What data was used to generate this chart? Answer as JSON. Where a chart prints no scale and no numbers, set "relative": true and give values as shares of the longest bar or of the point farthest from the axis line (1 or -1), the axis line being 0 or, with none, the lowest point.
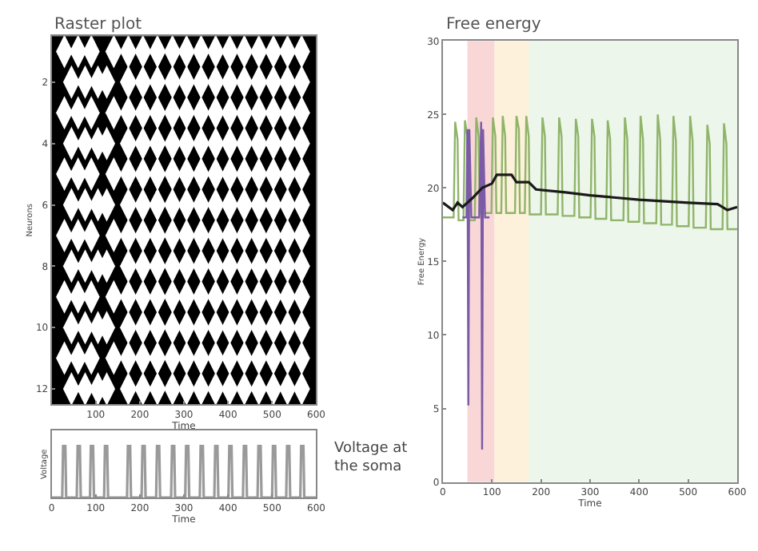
{
  "chart_data": [
    {
      "type": "scatter",
      "title": "Raster plot",
      "xlabel": "Time",
      "ylabel": "Neurons",
      "xlim": [
        0,
        600
      ],
      "xticks": [
        100,
        200,
        300,
        400,
        500,
        600
      ],
      "ylim": [
        12.5,
        0.5
      ],
      "yticks": [
        2,
        4,
        6,
        8,
        10,
        12
      ],
      "grid": false,
      "marker": "diamond",
      "series": [
        {
          "color": "#ffffff",
          "x": [
            29,
            60,
            90,
            141,
            174,
            207,
            240,
            274,
            306,
            339,
            372,
            404,
            437,
            470,
            503,
            535,
            567
          ],
          "values": [
            1,
            1,
            1,
            1,
            1,
            1,
            1,
            1,
            1,
            1,
            1,
            1,
            1,
            1,
            1,
            1,
            1
          ]
        },
        {
          "color": "#ffffff",
          "x": [
            45,
            76,
            105,
            125,
            174,
            207,
            240,
            274,
            306,
            339,
            372,
            404,
            437,
            470,
            503,
            535,
            567
          ],
          "values": [
            2,
            2,
            2,
            2,
            2,
            2,
            2,
            2,
            2,
            2,
            2,
            2,
            2,
            2,
            2,
            2,
            2
          ]
        },
        {
          "color": "#ffffff",
          "x": [
            29,
            60,
            90,
            141,
            174,
            207,
            240,
            274,
            306,
            339,
            372,
            404,
            437,
            470,
            503,
            535,
            567
          ],
          "values": [
            3,
            3,
            3,
            3,
            3,
            3,
            3,
            3,
            3,
            3,
            3,
            3,
            3,
            3,
            3,
            3,
            3
          ]
        },
        {
          "color": "#ffffff",
          "x": [
            45,
            76,
            105,
            125,
            174,
            207,
            240,
            274,
            306,
            339,
            372,
            404,
            437,
            470,
            503,
            535,
            567
          ],
          "values": [
            4,
            4,
            4,
            4,
            4,
            4,
            4,
            4,
            4,
            4,
            4,
            4,
            4,
            4,
            4,
            4,
            4
          ]
        },
        {
          "color": "#ffffff",
          "x": [
            29,
            60,
            90,
            141,
            174,
            207,
            240,
            274,
            306,
            339,
            372,
            404,
            437,
            470,
            503,
            535,
            567
          ],
          "values": [
            5,
            5,
            5,
            5,
            5,
            5,
            5,
            5,
            5,
            5,
            5,
            5,
            5,
            5,
            5,
            5,
            5
          ]
        },
        {
          "color": "#ffffff",
          "x": [
            45,
            76,
            105,
            125,
            174,
            207,
            240,
            274,
            306,
            339,
            372,
            404,
            437,
            470,
            503,
            535,
            567
          ],
          "values": [
            6,
            6,
            6,
            6,
            6,
            6,
            6,
            6,
            6,
            6,
            6,
            6,
            6,
            6,
            6,
            6,
            6
          ]
        },
        {
          "color": "#ffffff",
          "x": [
            29,
            60,
            90,
            141,
            174,
            207,
            240,
            274,
            306,
            339,
            372,
            404,
            437,
            470,
            503,
            535,
            567
          ],
          "values": [
            7,
            7,
            7,
            7,
            7,
            7,
            7,
            7,
            7,
            7,
            7,
            7,
            7,
            7,
            7,
            7,
            7
          ]
        },
        {
          "color": "#ffffff",
          "x": [
            45,
            76,
            105,
            125,
            174,
            207,
            240,
            274,
            306,
            339,
            372,
            404,
            437,
            470,
            503,
            535,
            567
          ],
          "values": [
            8,
            8,
            8,
            8,
            8,
            8,
            8,
            8,
            8,
            8,
            8,
            8,
            8,
            8,
            8,
            8,
            8
          ]
        },
        {
          "color": "#ffffff",
          "x": [
            29,
            60,
            90,
            141,
            174,
            207,
            240,
            274,
            306,
            339,
            372,
            404,
            437,
            470,
            503,
            535,
            567
          ],
          "values": [
            9,
            9,
            9,
            9,
            9,
            9,
            9,
            9,
            9,
            9,
            9,
            9,
            9,
            9,
            9,
            9,
            9
          ]
        },
        {
          "color": "#ffffff",
          "x": [
            45,
            76,
            105,
            125,
            174,
            207,
            240,
            274,
            306,
            339,
            372,
            404,
            437,
            470,
            503,
            535,
            567
          ],
          "values": [
            10,
            10,
            10,
            10,
            10,
            10,
            10,
            10,
            10,
            10,
            10,
            10,
            10,
            10,
            10,
            10,
            10
          ]
        },
        {
          "color": "#ffffff",
          "x": [
            29,
            60,
            90,
            141,
            174,
            207,
            240,
            274,
            306,
            339,
            372,
            404,
            437,
            470,
            503,
            535,
            567
          ],
          "values": [
            11,
            11,
            11,
            11,
            11,
            11,
            11,
            11,
            11,
            11,
            11,
            11,
            11,
            11,
            11,
            11,
            11
          ]
        },
        {
          "color": "#ffffff",
          "x": [
            45,
            76,
            105,
            125,
            174,
            207,
            240,
            274,
            306,
            339,
            372,
            404,
            437,
            470,
            503,
            535,
            567
          ],
          "values": [
            12,
            12,
            12,
            12,
            12,
            12,
            12,
            12,
            12,
            12,
            12,
            12,
            12,
            12,
            12,
            12,
            12
          ]
        }
      ]
    },
    {
      "type": "line",
      "relative": true,
      "xlabel": "Time",
      "ylabel": "Voltage",
      "tick_labels": "x",
      "xlim": [
        0,
        600
      ],
      "xticks": [
        0,
        100,
        200,
        300,
        400,
        500,
        600
      ],
      "grid": false,
      "annotations": [
        "Voltage at the soma"
      ],
      "series": [
        {
          "color": "#9a9a9a",
          "x": [
            0,
            24,
            26,
            31,
            33,
            57,
            59,
            64,
            66,
            87,
            89,
            94,
            96,
            119,
            121,
            126,
            128,
            171,
            173,
            178,
            180,
            204,
            206,
            211,
            213,
            237,
            239,
            244,
            246,
            271,
            273,
            278,
            280,
            303,
            305,
            310,
            312,
            336,
            338,
            343,
            345,
            369,
            371,
            376,
            378,
            401,
            403,
            408,
            410,
            434,
            436,
            441,
            443,
            467,
            469,
            474,
            476,
            500,
            502,
            507,
            509,
            532,
            534,
            539,
            541,
            564,
            566,
            571,
            573,
            600
          ],
          "values": [
            0,
            0,
            1,
            1,
            0,
            0,
            1,
            1,
            0,
            0,
            1,
            1,
            0,
            0,
            1,
            1,
            0,
            0,
            1,
            1,
            0,
            0,
            1,
            1,
            0,
            0,
            1,
            1,
            0,
            0,
            1,
            1,
            0,
            0,
            1,
            1,
            0,
            0,
            1,
            1,
            0,
            0,
            1,
            1,
            0,
            0,
            1,
            1,
            0,
            0,
            1,
            1,
            0,
            0,
            1,
            1,
            0,
            0,
            1,
            1,
            0,
            0,
            1,
            1,
            0,
            0,
            1,
            1,
            0,
            0
          ]
        }
      ]
    },
    {
      "type": "line",
      "title": "Free energy",
      "xlabel": "Time",
      "ylabel": "Free Energy",
      "xlim": [
        0,
        600
      ],
      "xticks": [
        0,
        100,
        200,
        300,
        400,
        500,
        600
      ],
      "ylim": [
        0,
        30
      ],
      "yticks": [
        0,
        5,
        10,
        15,
        20,
        25,
        30
      ],
      "grid": false,
      "bands": [
        {
          "axis": "x",
          "from": 50,
          "to": 105,
          "color": "#f4a6a6"
        },
        {
          "axis": "x",
          "from": 105,
          "to": 175,
          "color": "#fbe0b0"
        },
        {
          "axis": "x",
          "from": 175,
          "to": 600,
          "color": "#d6ead0"
        }
      ],
      "series": [
        {
          "color": "#8fb46a",
          "x": [
            0,
            22,
            25,
            30,
            32,
            42,
            45,
            50,
            52,
            65,
            68,
            73,
            75,
            99,
            102,
            107,
            109,
            119,
            122,
            127,
            129,
            147,
            150,
            155,
            157,
            167,
            170,
            175,
            177,
            200,
            203,
            208,
            210,
            234,
            237,
            242,
            244,
            268,
            271,
            276,
            278,
            301,
            304,
            309,
            311,
            333,
            336,
            341,
            343,
            368,
            371,
            376,
            378,
            400,
            403,
            408,
            410,
            435,
            438,
            443,
            445,
            467,
            470,
            475,
            477,
            501,
            504,
            509,
            511,
            536,
            539,
            544,
            546,
            570,
            573,
            578,
            580,
            600
          ],
          "values": [
            18,
            18,
            24.5,
            23.3,
            17.8,
            17.8,
            24.6,
            23.5,
            17.8,
            17.8,
            24.8,
            23.5,
            18.3,
            18.3,
            24.8,
            23.5,
            18.3,
            18.3,
            24.9,
            23.5,
            18.3,
            18.3,
            24.9,
            24,
            18.3,
            18.3,
            24.9,
            23.5,
            18.2,
            18.2,
            24.8,
            23.5,
            18.2,
            18.2,
            24.8,
            23.5,
            18.1,
            18.1,
            24.7,
            23.5,
            18,
            18,
            24.7,
            23.5,
            17.9,
            17.9,
            24.6,
            23.3,
            17.8,
            17.8,
            24.8,
            23.3,
            17.7,
            17.7,
            24.9,
            23.3,
            17.6,
            17.6,
            25,
            23.3,
            17.5,
            17.5,
            24.9,
            23.2,
            17.4,
            17.4,
            24.9,
            23.2,
            17.3,
            17.3,
            24.3,
            23,
            17.2,
            17.2,
            24.4,
            23,
            17.2,
            17.2
          ]
        },
        {
          "color": "#7b5aa6",
          "x": [
            40,
            48,
            50,
            52,
            54,
            58,
            74,
            78,
            80,
            82,
            86,
            95
          ],
          "values": [
            18,
            18,
            24,
            5.2,
            24,
            18,
            18,
            24.5,
            2.2,
            24,
            18,
            18
          ]
        },
        {
          "color": "#1a1a1a",
          "x": [
            0,
            20,
            30,
            40,
            60,
            80,
            100,
            110,
            140,
            150,
            175,
            190,
            250,
            300,
            400,
            500,
            560,
            580,
            600
          ],
          "values": [
            19,
            18.5,
            19,
            18.7,
            19.3,
            20,
            20.3,
            20.9,
            20.9,
            20.4,
            20.4,
            19.9,
            19.7,
            19.5,
            19.2,
            19,
            18.9,
            18.5,
            18.7
          ]
        }
      ]
    }
  ]
}
